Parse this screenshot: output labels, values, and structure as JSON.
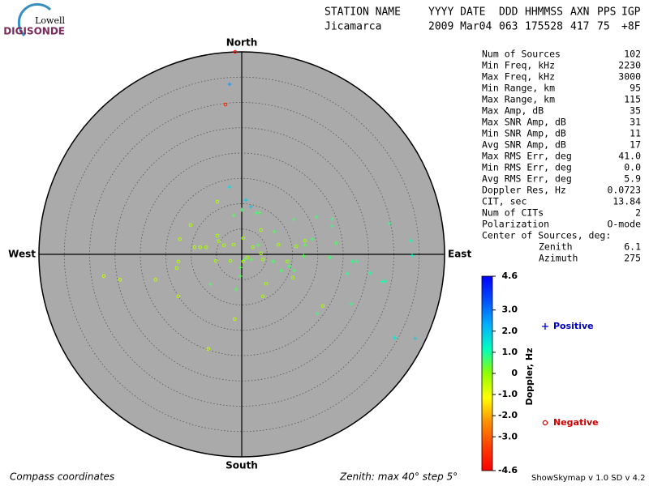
{
  "logo": {
    "line1": "Lowell",
    "line2": "DIGISONDE"
  },
  "header": {
    "columns": [
      "STATION NAME",
      "YYYY DATE",
      "DDD",
      "HHMMSS",
      "AXN",
      "PPS",
      "IGP"
    ],
    "values": [
      "Jicamarca",
      "2009 Mar04",
      "063",
      "175528",
      "417",
      "75",
      "+8F"
    ]
  },
  "stats": {
    "rows": [
      [
        "Num of Sources",
        "102"
      ],
      [
        "Min Freq, kHz",
        "2230"
      ],
      [
        "Max Freq, kHz",
        "3000"
      ],
      [
        "Min Range, km",
        "95"
      ],
      [
        "Max Range, km",
        "115"
      ],
      [
        "Max Amp, dB",
        "35"
      ],
      [
        "Max SNR Amp, dB",
        "31"
      ],
      [
        "Min SNR Amp, dB",
        "11"
      ],
      [
        "Avg SNR Amp, dB",
        "17"
      ],
      [
        "Max RMS Err, deg",
        "41.0"
      ],
      [
        "Min RMS Err, deg",
        "0.0"
      ],
      [
        "Avg RMS Err, deg",
        "5.9"
      ],
      [
        "Doppler Res, Hz",
        "0.0723"
      ],
      [
        "CIT, sec",
        "13.84"
      ],
      [
        "Num of CITs",
        "2"
      ],
      [
        "Polarization",
        "O-mode"
      ]
    ],
    "center": {
      "title": "Center of Sources, deg:",
      "rows": [
        [
          "Zenith",
          "6.1"
        ],
        [
          "Azimuth",
          "275"
        ]
      ]
    }
  },
  "footer": {
    "left": "Compass coordinates",
    "center": "Zenith: max 40°  step 5°",
    "right": "ShowSkymap v 1.0  SD v 4.2"
  },
  "chart_data": {
    "type": "skymap",
    "directions": {
      "north": "North",
      "south": "South",
      "east": "East",
      "west": "West"
    },
    "rlim": [
      0,
      40
    ],
    "rticks": [
      5,
      10,
      15,
      20,
      25,
      30,
      35,
      40
    ],
    "series": [
      {
        "name": "Positive",
        "color": "#0000c0",
        "marker": "plus",
        "x": [
          -2.4,
          -2.4,
          0.8,
          1.8,
          2.9,
          3.5,
          -1.6,
          0.0,
          3.2,
          1.9,
          0.6,
          -0.3,
          -0.3,
          -1.1,
          -6.2,
          6.2,
          7.8,
          9.4,
          12.2,
          12.5,
          10.2,
          14.7,
          17.8,
          17.8,
          18.6,
          17.4,
          21.8,
          22.7,
          20.8,
          25.3,
          27.7,
          28.3,
          29.1,
          33.3,
          33.6,
          21.6,
          14.9,
          30.2,
          34.2,
          10.4,
          13.9,
          6.4
        ],
        "y": [
          33.6,
          13.3,
          10.7,
          9.4,
          8.2,
          8.2,
          7.7,
          8.8,
          1.8,
          -1.0,
          -1.0,
          -2.6,
          -4.3,
          -6.9,
          -5.9,
          -1.4,
          -3.2,
          -2.4,
          -0.3,
          1.8,
          6.9,
          7.4,
          7.0,
          5.6,
          2.2,
          -0.6,
          -1.4,
          -1.4,
          -3.8,
          -3.7,
          -5.4,
          -5.3,
          6.1,
          2.7,
          -0.2,
          -9.8,
          -11.7,
          -16.5,
          -16.6,
          -3.2,
          3.0,
          4.5
        ],
        "doppler": [
          2.5,
          1.6,
          1.9,
          2.0,
          0.6,
          0.6,
          0.5,
          0.6,
          0.5,
          0.5,
          0.5,
          0.5,
          0.5,
          0.5,
          0.5,
          0.6,
          0.6,
          0.6,
          0.5,
          0.5,
          0.6,
          0.7,
          0.7,
          0.7,
          0.6,
          0.7,
          0.8,
          0.8,
          0.8,
          0.9,
          1.0,
          1.0,
          0.8,
          1.0,
          1.2,
          0.8,
          0.7,
          1.5,
          1.8,
          0.6,
          0.7,
          0.5
        ]
      },
      {
        "name": "Negative",
        "color": "#d00000",
        "marker": "circle",
        "x": [
          -1.3,
          -3.2,
          -4.8,
          -10.1,
          -12.2,
          -9.3,
          -8.2,
          -7.0,
          -4.8,
          -4.5,
          -3.5,
          -1.6,
          -5.1,
          -2.2,
          -12.8,
          -12.5,
          -27.2,
          -24.0,
          -17.0,
          -12.5,
          -6.6,
          -1.4,
          0.3,
          2.2,
          3.8,
          4.2,
          4.8,
          3.8,
          4.2,
          0.3,
          1.1,
          7.2,
          9.0,
          10.1,
          16.0,
          10.7,
          12.5
        ],
        "y": [
          40.0,
          29.6,
          10.4,
          5.8,
          3.0,
          1.4,
          1.4,
          1.4,
          3.7,
          2.6,
          1.8,
          1.9,
          -1.3,
          -1.3,
          -2.7,
          -1.4,
          -4.3,
          -5.0,
          -5.0,
          -8.3,
          -18.7,
          -12.8,
          -1.4,
          1.4,
          0.2,
          -1.0,
          -5.8,
          4.8,
          -8.3,
          3.2,
          -0.6,
          1.9,
          -1.4,
          -4.6,
          -10.2,
          1.6,
          2.7
        ],
        "doppler": [
          -4.4,
          -4.0,
          -0.3,
          -0.3,
          -0.3,
          -0.3,
          -0.3,
          -0.3,
          -0.2,
          -0.2,
          -0.2,
          -0.2,
          -0.2,
          -0.2,
          -0.3,
          -0.3,
          -0.5,
          -0.5,
          -0.4,
          -0.4,
          -0.5,
          -0.4,
          -0.1,
          -0.1,
          -0.1,
          -0.1,
          -0.1,
          -0.1,
          -0.2,
          -0.1,
          -0.1,
          -0.1,
          -0.1,
          -0.1,
          -0.2,
          -0.1,
          -0.1
        ]
      }
    ],
    "colorbar": {
      "label": "Doppler, Hz",
      "lim": [
        -4.6,
        4.6
      ],
      "ticks": [
        4.6,
        {
          "value": 3,
          "label": "3.0"
        },
        {
          "value": 2,
          "label": "2.0"
        },
        {
          "value": 1,
          "label": "1.0"
        },
        0,
        {
          "value": -1,
          "label": "-1.0"
        },
        {
          "value": -2,
          "label": "-2.0"
        },
        {
          "value": -3,
          "label": "-3.0"
        },
        -4.6
      ],
      "colors": [
        "#ff0000",
        "#ff4000",
        "#ff9000",
        "#ffff00",
        "#90ff00",
        "#00ffc0",
        "#00b0ff",
        "#0050ff",
        "#0000ff"
      ]
    }
  }
}
